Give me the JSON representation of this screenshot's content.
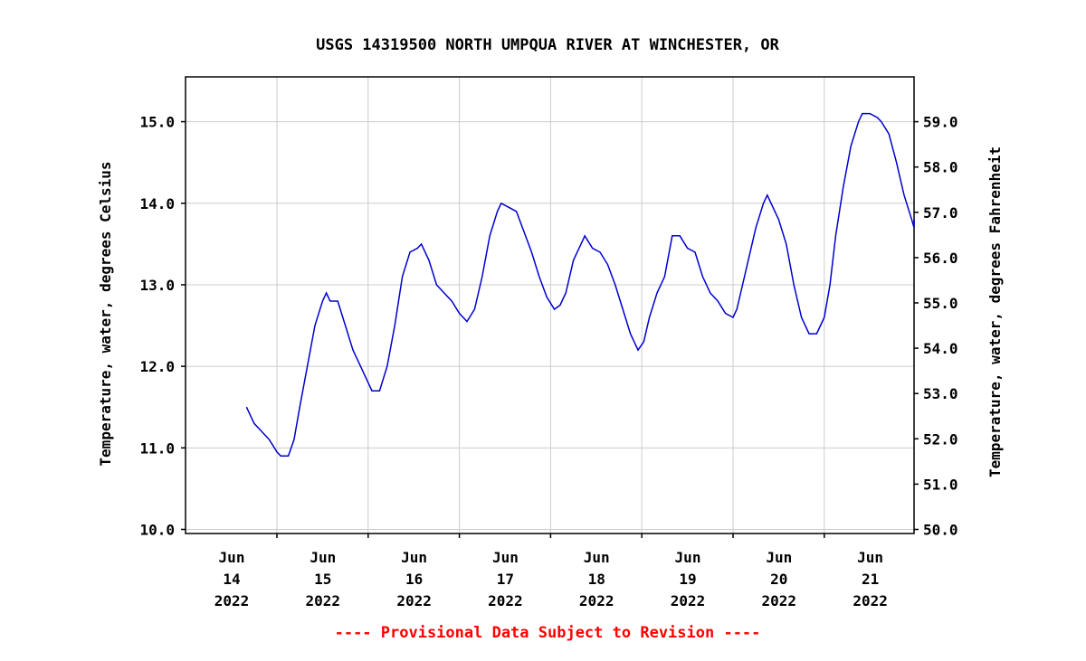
{
  "chart_data": {
    "type": "line",
    "title": "USGS 14319500 NORTH UMPQUA RIVER AT WINCHESTER, OR",
    "ylabel_left": "Temperature, water, degrees Celsius",
    "ylabel_right": "Temperature, water, degrees Fahrenheit",
    "y_left_ticks": [
      "10.0",
      "11.0",
      "12.0",
      "13.0",
      "14.0",
      "15.0"
    ],
    "y_right_ticks": [
      "50.0",
      "51.0",
      "52.0",
      "53.0",
      "54.0",
      "55.0",
      "56.0",
      "57.0",
      "58.0",
      "59.0"
    ],
    "ylim_left": [
      9.95,
      15.55
    ],
    "x_ticks": [
      {
        "month": "Jun",
        "day": "14",
        "year": "2022"
      },
      {
        "month": "Jun",
        "day": "15",
        "year": "2022"
      },
      {
        "month": "Jun",
        "day": "16",
        "year": "2022"
      },
      {
        "month": "Jun",
        "day": "17",
        "year": "2022"
      },
      {
        "month": "Jun",
        "day": "18",
        "year": "2022"
      },
      {
        "month": "Jun",
        "day": "19",
        "year": "2022"
      },
      {
        "month": "Jun",
        "day": "20",
        "year": "2022"
      },
      {
        "month": "Jun",
        "day": "21",
        "year": "2022"
      }
    ],
    "grid": true,
    "series_color": "#0000cc",
    "series": [
      {
        "points": [
          [
            "2022-06-13 16:00",
            11.5
          ],
          [
            "2022-06-13 18:00",
            11.3
          ],
          [
            "2022-06-13 20:00",
            11.2
          ],
          [
            "2022-06-13 22:00",
            11.1
          ],
          [
            "2022-06-14 00:00",
            10.95
          ],
          [
            "2022-06-14 01:00",
            10.9
          ],
          [
            "2022-06-14 03:00",
            10.9
          ],
          [
            "2022-06-14 04:30",
            11.1
          ],
          [
            "2022-06-14 06:00",
            11.5
          ],
          [
            "2022-06-14 08:00",
            12.0
          ],
          [
            "2022-06-14 10:00",
            12.5
          ],
          [
            "2022-06-14 12:00",
            12.8
          ],
          [
            "2022-06-14 13:00",
            12.9
          ],
          [
            "2022-06-14 14:00",
            12.8
          ],
          [
            "2022-06-14 16:00",
            12.8
          ],
          [
            "2022-06-14 18:00",
            12.5
          ],
          [
            "2022-06-14 20:00",
            12.2
          ],
          [
            "2022-06-14 22:00",
            12.0
          ],
          [
            "2022-06-15 00:00",
            11.8
          ],
          [
            "2022-06-15 01:00",
            11.7
          ],
          [
            "2022-06-15 03:00",
            11.7
          ],
          [
            "2022-06-15 05:00",
            12.0
          ],
          [
            "2022-06-15 07:00",
            12.5
          ],
          [
            "2022-06-15 09:00",
            13.1
          ],
          [
            "2022-06-15 11:00",
            13.4
          ],
          [
            "2022-06-15 13:00",
            13.45
          ],
          [
            "2022-06-15 14:00",
            13.5
          ],
          [
            "2022-06-15 16:00",
            13.3
          ],
          [
            "2022-06-15 18:00",
            13.0
          ],
          [
            "2022-06-15 20:00",
            12.9
          ],
          [
            "2022-06-15 22:00",
            12.8
          ],
          [
            "2022-06-16 00:00",
            12.65
          ],
          [
            "2022-06-16 02:00",
            12.55
          ],
          [
            "2022-06-16 04:00",
            12.7
          ],
          [
            "2022-06-16 06:00",
            13.1
          ],
          [
            "2022-06-16 08:00",
            13.6
          ],
          [
            "2022-06-16 10:00",
            13.9
          ],
          [
            "2022-06-16 11:00",
            14.0
          ],
          [
            "2022-06-16 13:00",
            13.95
          ],
          [
            "2022-06-16 15:00",
            13.9
          ],
          [
            "2022-06-16 17:00",
            13.65
          ],
          [
            "2022-06-16 19:00",
            13.4
          ],
          [
            "2022-06-16 21:00",
            13.1
          ],
          [
            "2022-06-16 23:00",
            12.85
          ],
          [
            "2022-06-17 01:00",
            12.7
          ],
          [
            "2022-06-17 02:30",
            12.75
          ],
          [
            "2022-06-17 04:00",
            12.9
          ],
          [
            "2022-06-17 06:00",
            13.3
          ],
          [
            "2022-06-17 08:00",
            13.5
          ],
          [
            "2022-06-17 09:00",
            13.6
          ],
          [
            "2022-06-17 11:00",
            13.45
          ],
          [
            "2022-06-17 13:00",
            13.4
          ],
          [
            "2022-06-17 15:00",
            13.25
          ],
          [
            "2022-06-17 17:00",
            13.0
          ],
          [
            "2022-06-17 19:00",
            12.7
          ],
          [
            "2022-06-17 21:00",
            12.4
          ],
          [
            "2022-06-17 23:00",
            12.2
          ],
          [
            "2022-06-18 00:30",
            12.3
          ],
          [
            "2022-06-18 02:00",
            12.6
          ],
          [
            "2022-06-18 04:00",
            12.9
          ],
          [
            "2022-06-18 06:00",
            13.1
          ],
          [
            "2022-06-18 08:00",
            13.6
          ],
          [
            "2022-06-18 10:00",
            13.6
          ],
          [
            "2022-06-18 12:00",
            13.45
          ],
          [
            "2022-06-18 14:00",
            13.4
          ],
          [
            "2022-06-18 16:00",
            13.1
          ],
          [
            "2022-06-18 18:00",
            12.9
          ],
          [
            "2022-06-18 20:00",
            12.8
          ],
          [
            "2022-06-18 22:00",
            12.65
          ],
          [
            "2022-06-19 00:00",
            12.6
          ],
          [
            "2022-06-19 01:00",
            12.7
          ],
          [
            "2022-06-19 02:30",
            13.0
          ],
          [
            "2022-06-19 04:00",
            13.3
          ],
          [
            "2022-06-19 06:00",
            13.7
          ],
          [
            "2022-06-19 08:00",
            14.0
          ],
          [
            "2022-06-19 09:00",
            14.1
          ],
          [
            "2022-06-19 10:00",
            14.0
          ],
          [
            "2022-06-19 12:00",
            13.8
          ],
          [
            "2022-06-19 14:00",
            13.5
          ],
          [
            "2022-06-19 16:00",
            13.0
          ],
          [
            "2022-06-19 18:00",
            12.6
          ],
          [
            "2022-06-19 20:00",
            12.4
          ],
          [
            "2022-06-19 22:00",
            12.4
          ],
          [
            "2022-06-20 00:00",
            12.6
          ],
          [
            "2022-06-20 01:30",
            13.0
          ],
          [
            "2022-06-20 03:00",
            13.6
          ],
          [
            "2022-06-20 05:00",
            14.2
          ],
          [
            "2022-06-20 07:00",
            14.7
          ],
          [
            "2022-06-20 09:00",
            15.0
          ],
          [
            "2022-06-20 10:00",
            15.1
          ],
          [
            "2022-06-20 12:00",
            15.1
          ],
          [
            "2022-06-20 14:00",
            15.05
          ],
          [
            "2022-06-20 15:00",
            15.0
          ],
          [
            "2022-06-20 17:00",
            14.85
          ],
          [
            "2022-06-20 19:00",
            14.5
          ],
          [
            "2022-06-20 21:00",
            14.1
          ],
          [
            "2022-06-20 23:00",
            13.8
          ],
          [
            "2022-06-21 00:00",
            13.7
          ],
          [
            "2022-06-21 00:45",
            13.8
          ]
        ]
      }
    ]
  },
  "footer": {
    "text": "---- Provisional Data Subject to Revision ----",
    "color": "#ff0000"
  }
}
